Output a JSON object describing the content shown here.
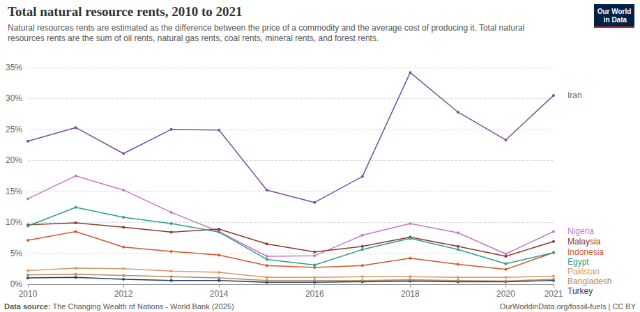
{
  "chart_data": {
    "type": "line",
    "title": "Total natural resource rents, 2010 to 2021",
    "subtitle": "Natural resources rents are estimated as the difference between the price of a commodity and the average cost of producing it. Total natural resources rents are the sum of oil rents, natural gas rents, coal rents, mineral rents, and forest rents.",
    "source_label": "Data source:",
    "source": "The Changing Wealth of Nations - World Bank (2025)",
    "credit": "OurWorldinData.org/fossil-fuels | CC BY",
    "logo": "Our World in Data",
    "x": [
      2010,
      2011,
      2012,
      2013,
      2014,
      2015,
      2016,
      2017,
      2018,
      2019,
      2020,
      2021
    ],
    "xlim": [
      2010,
      2021
    ],
    "xticks": [
      2010,
      2012,
      2014,
      2016,
      2018,
      2020,
      2021
    ],
    "ylim": [
      0,
      35
    ],
    "yticks": [
      {
        "value": 0,
        "label": "0%"
      },
      {
        "value": 5,
        "label": "5%"
      },
      {
        "value": 10,
        "label": "10%"
      },
      {
        "value": 15,
        "label": "15%"
      },
      {
        "value": 20,
        "label": "20%"
      },
      {
        "value": 25,
        "label": "25%"
      },
      {
        "value": 30,
        "label": "30%"
      },
      {
        "value": 35,
        "label": "35%"
      }
    ],
    "grid": true,
    "marker": "circle",
    "series": [
      {
        "name": "Iran",
        "color": "#7a4f9a",
        "values": [
          23.1,
          25.3,
          21.1,
          25.0,
          24.9,
          15.2,
          13.2,
          17.4,
          34.2,
          27.8,
          23.3,
          30.5
        ]
      },
      {
        "name": "Nigeria",
        "color": "#c27cc2",
        "values": [
          13.8,
          17.5,
          15.2,
          11.6,
          8.5,
          4.5,
          4.6,
          7.9,
          9.8,
          8.3,
          4.9,
          8.5
        ]
      },
      {
        "name": "Malaysia",
        "color": "#8c3a2b",
        "values": [
          9.6,
          9.9,
          9.2,
          8.4,
          8.9,
          6.5,
          5.2,
          6.1,
          7.6,
          6.1,
          4.5,
          6.9
        ]
      },
      {
        "name": "Indonesia",
        "color": "#d2572f",
        "values": [
          7.1,
          8.5,
          6.0,
          5.3,
          4.7,
          3.0,
          2.7,
          3.0,
          4.2,
          3.2,
          2.4,
          5.1
        ]
      },
      {
        "name": "Egypt",
        "color": "#2e9e8a",
        "values": [
          9.4,
          12.4,
          10.8,
          9.8,
          8.4,
          4.0,
          3.1,
          5.6,
          7.4,
          5.6,
          3.3,
          5.1
        ]
      },
      {
        "name": "Pakistan",
        "color": "#d99a6c",
        "values": [
          2.2,
          2.6,
          2.5,
          2.1,
          1.9,
          1.1,
          1.1,
          1.2,
          1.2,
          1.1,
          1.1,
          1.3
        ]
      },
      {
        "name": "Turkey",
        "color": "#1f3b70",
        "values": [
          1.0,
          1.1,
          0.8,
          0.6,
          0.6,
          0.3,
          0.3,
          0.4,
          0.5,
          0.4,
          0.4,
          0.6
        ]
      },
      {
        "name": "Bangladesh",
        "color": "#b88a5a",
        "values": [
          1.5,
          1.6,
          1.4,
          1.2,
          1.0,
          0.6,
          0.6,
          0.6,
          0.7,
          0.6,
          0.5,
          0.8
        ]
      }
    ]
  }
}
